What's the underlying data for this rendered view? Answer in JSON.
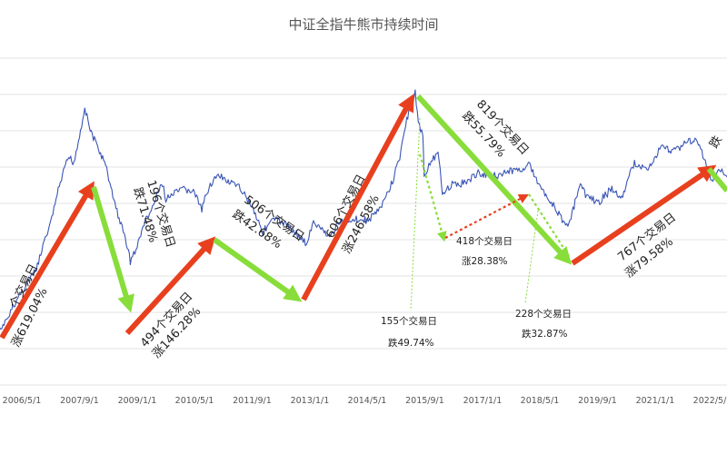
{
  "chart_data": {
    "type": "line",
    "title": "中证全指牛熊市持续时间",
    "x_ticks": [
      "2006/5/1",
      "2007/9/1",
      "2009/1/1",
      "2010/5/1",
      "2011/9/1",
      "2013/1/1",
      "2014/5/1",
      "2015/9/1",
      "2017/1/1",
      "2018/5/1",
      "2019/9/1",
      "2021/1/1",
      "2022/5/1"
    ],
    "grid": "horizontal",
    "series": [
      {
        "x": [
          "2005-06-01",
          "2005-12-01",
          "2006-05-01",
          "2006-09-01",
          "2007-01-01",
          "2007-04-01",
          "2007-06-01",
          "2007-07-15",
          "2007-09-01",
          "2007-10-16",
          "2007-12-01",
          "2008-02-01",
          "2008-04-01",
          "2008-06-01",
          "2008-08-01",
          "2008-10-01",
          "2008-11-04",
          "2009-01-01",
          "2009-03-01",
          "2009-05-01",
          "2009-08-04",
          "2009-09-01",
          "2009-11-23",
          "2010-02-01",
          "2010-05-01",
          "2010-07-02",
          "2010-09-01",
          "2010-11-08",
          "2011-03-01",
          "2011-06-01",
          "2011-09-01",
          "2011-12-01",
          "2012-03-01",
          "2012-06-01",
          "2012-09-01",
          "2012-12-04",
          "2013-02-01",
          "2013-06-25",
          "2013-09-01",
          "2014-01-01",
          "2014-05-01",
          "2014-09-01",
          "2014-12-01",
          "2015-02-01",
          "2015-04-01",
          "2015-06-12",
          "2015-07-08",
          "2015-08-15",
          "2015-08-26",
          "2015-10-15",
          "2015-12-22",
          "2016-01-28",
          "2016-04-01",
          "2016-08-01",
          "2016-11-25",
          "2017-05-10",
          "2017-09-01",
          "2017-11-15",
          "2018-01-24",
          "2018-04-01",
          "2018-07-01",
          "2018-10-19",
          "2019-01-03",
          "2019-02-15",
          "2019-04-08",
          "2019-06-01",
          "2019-09-01",
          "2020-01-01",
          "2020-03-23",
          "2020-07-10",
          "2020-11-01",
          "2021-02-18",
          "2021-06-01",
          "2021-09-15",
          "2021-12-13",
          "2022-03-01",
          "2022-04-26",
          "2022-07-01",
          "2022-10-31",
          "2023-02-01"
        ],
        "values": [
          1.0,
          1.2,
          1.6,
          1.9,
          2.8,
          4.0,
          4.8,
          4.6,
          5.7,
          7.19,
          6.0,
          5.2,
          4.6,
          3.6,
          2.9,
          2.4,
          2.05,
          2.3,
          2.8,
          3.1,
          3.9,
          3.4,
          3.6,
          3.7,
          3.6,
          3.1,
          3.8,
          4.1,
          3.9,
          3.7,
          3.2,
          2.6,
          2.9,
          2.8,
          2.6,
          2.35,
          2.8,
          2.5,
          2.8,
          2.9,
          2.85,
          3.2,
          3.9,
          4.8,
          6.5,
          8.1,
          6.4,
          5.7,
          4.1,
          4.6,
          4.9,
          3.6,
          3.8,
          3.9,
          4.2,
          4.15,
          4.3,
          4.3,
          4.6,
          4.0,
          3.5,
          2.95,
          2.75,
          3.2,
          3.8,
          3.5,
          3.3,
          3.7,
          3.4,
          4.6,
          4.3,
          5.2,
          5.1,
          5.4,
          5.6,
          4.6,
          3.9,
          4.4,
          3.7,
          4.5
        ]
      }
    ],
    "annotations": {
      "a1_l1": "个交易日",
      "a1_l2": "涨619.04%",
      "a2_l1": "196个交易日",
      "a2_l2": "跌71.48%",
      "a3_l1": "494个交易日",
      "a3_l2": "涨146.28%",
      "a4_l1": "506个交易日",
      "a4_l2": "跌42.68%",
      "a5_l1": "606个交易日",
      "a5_l2": "涨246.58%",
      "a6_l1": "819个交易日",
      "a6_l2": "跌55.79%",
      "a7_l1": "155个交易日",
      "a7_l2": "跌49.74%",
      "a8_l1": "418个交易日",
      "a8_l2": "涨28.38%",
      "a9_l1": "228个交易日",
      "a9_l2": "跌32.87%",
      "a10_l1": "767个交易日",
      "a10_l2": "涨79.58%",
      "a11_l1": "跌"
    },
    "colors": {
      "line": "#3a55b5",
      "bull": "#e8401e",
      "bear": "#88dd3a",
      "grid": "#e3e3e3"
    }
  }
}
